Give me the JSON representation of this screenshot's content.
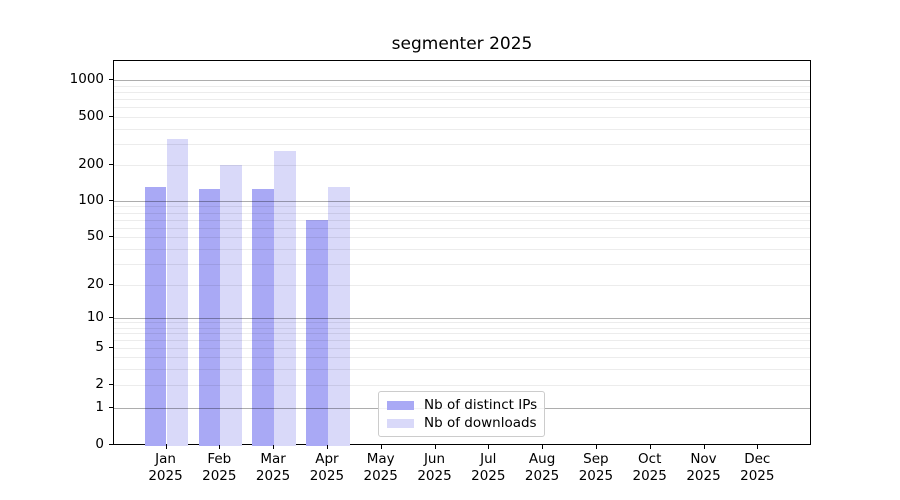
{
  "chart_data": {
    "type": "bar",
    "title": "segmenter 2025",
    "categories": [
      "Jan",
      "Feb",
      "Mar",
      "Apr",
      "May",
      "Jun",
      "Jul",
      "Aug",
      "Sep",
      "Oct",
      "Nov",
      "Dec"
    ],
    "category_year": "2025",
    "series": [
      {
        "name": "Nb of distinct IPs",
        "color": "#a9a9f5",
        "values": [
          130,
          125,
          125,
          70,
          0,
          0,
          0,
          0,
          0,
          0,
          0,
          0
        ]
      },
      {
        "name": "Nb of downloads",
        "color": "#d9d9f9",
        "values": [
          330,
          200,
          260,
          130,
          0,
          0,
          0,
          0,
          0,
          0,
          0,
          0
        ]
      }
    ],
    "yticks": [
      0,
      1,
      2,
      5,
      10,
      20,
      50,
      100,
      200,
      500,
      1000
    ],
    "yscale": "asinh",
    "ylim": [
      0,
      1400
    ],
    "xlabel": "",
    "ylabel": "",
    "grid": "horizontal major and minor",
    "legend_position": "bottom-center"
  }
}
